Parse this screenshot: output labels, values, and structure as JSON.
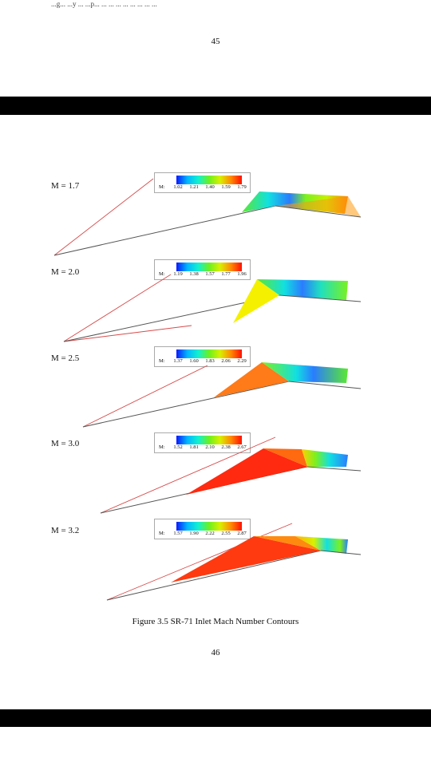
{
  "previous_page": {
    "tail_text": "...g... ...y ... ...p... ... ... ... ... ... ... ... ...",
    "page_number": "45"
  },
  "figure": {
    "caption": "Figure 3.5 SR-71 Inlet Mach Number Contours",
    "panels": [
      {
        "mach_label": "M = 1.7",
        "legend_label": "M:",
        "ticks": [
          "1.02",
          "1.21",
          "1.40",
          "1.59",
          "1.79"
        ]
      },
      {
        "mach_label": "M = 2.0",
        "legend_label": "M:",
        "ticks": [
          "1.19",
          "1.38",
          "1.57",
          "1.77",
          "1.96"
        ]
      },
      {
        "mach_label": "M = 2.5",
        "legend_label": "M:",
        "ticks": [
          "1.37",
          "1.60",
          "1.83",
          "2.06",
          "2.29"
        ]
      },
      {
        "mach_label": "M = 3.0",
        "legend_label": "M:",
        "ticks": [
          "1.52",
          "1.81",
          "2.10",
          "2.38",
          "2.67"
        ]
      },
      {
        "mach_label": "M = 3.2",
        "legend_label": "M:",
        "ticks": [
          "1.57",
          "1.90",
          "2.22",
          "2.55",
          "2.87"
        ]
      }
    ],
    "colors": {
      "shock_line": "#d84a4a",
      "wall": "#555555",
      "scale": [
        "#0a18ff",
        "#00b6ff",
        "#12f0d0",
        "#6cf020",
        "#d8f000",
        "#ff8a00",
        "#ff1000"
      ]
    }
  },
  "page_number": "46"
}
